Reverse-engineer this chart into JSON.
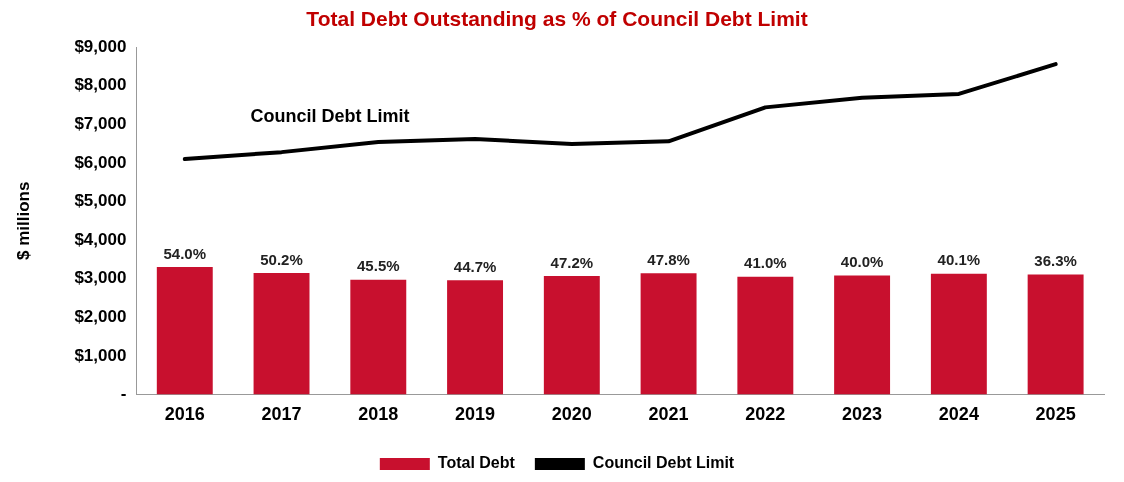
{
  "chart_data": {
    "type": "bar",
    "title": "Total Debt Outstanding as % of Council Debt Limit",
    "ylabel": "$ millions",
    "categories": [
      "2016",
      "2017",
      "2018",
      "2019",
      "2020",
      "2021",
      "2022",
      "2023",
      "2024",
      "2025"
    ],
    "series": [
      {
        "name": "Total Debt",
        "color": "#c8102e",
        "values": [
          3300,
          3150,
          2970,
          2960,
          3070,
          3140,
          3050,
          3080,
          3130,
          3110
        ]
      },
      {
        "name": "Council Debt Limit",
        "type": "line",
        "color": "#000000",
        "values": [
          6100,
          6280,
          6540,
          6620,
          6490,
          6560,
          7440,
          7690,
          7790,
          8560
        ]
      }
    ],
    "ylim": [
      0,
      9000
    ],
    "yticks": [
      {
        "value": 0,
        "label": "-"
      },
      {
        "value": 1000,
        "label": "$1,000"
      },
      {
        "value": 2000,
        "label": "$2,000"
      },
      {
        "value": 3000,
        "label": "$3,000"
      },
      {
        "value": 4000,
        "label": "$4,000"
      },
      {
        "value": 5000,
        "label": "$5,000"
      },
      {
        "value": 6000,
        "label": "$6,000"
      },
      {
        "value": 7000,
        "label": "$7,000"
      },
      {
        "value": 8000,
        "label": "$8,000"
      },
      {
        "value": 9000,
        "label": "$9,000"
      }
    ],
    "annotations": [
      "Council Debt Limit",
      {
        "text": "54.0%",
        "x": "2016",
        "y": 3300
      },
      {
        "text": "50.2%",
        "x": "2017",
        "y": 3150
      },
      {
        "text": "45.5%",
        "x": "2018",
        "y": 2970
      },
      {
        "text": "44.7%",
        "x": "2019",
        "y": 2960
      },
      {
        "text": "47.2%",
        "x": "2020",
        "y": 3070
      },
      {
        "text": "47.8%",
        "x": "2021",
        "y": 3140
      },
      {
        "text": "41.0%",
        "x": "2022",
        "y": 3050
      },
      {
        "text": "40.0%",
        "x": "2023",
        "y": 3080
      },
      {
        "text": "40.1%",
        "x": "2024",
        "y": 3130
      },
      {
        "text": "36.3%",
        "x": "2025",
        "y": 3110
      }
    ],
    "legend": "bottom",
    "grid": false,
    "marker": "none"
  }
}
